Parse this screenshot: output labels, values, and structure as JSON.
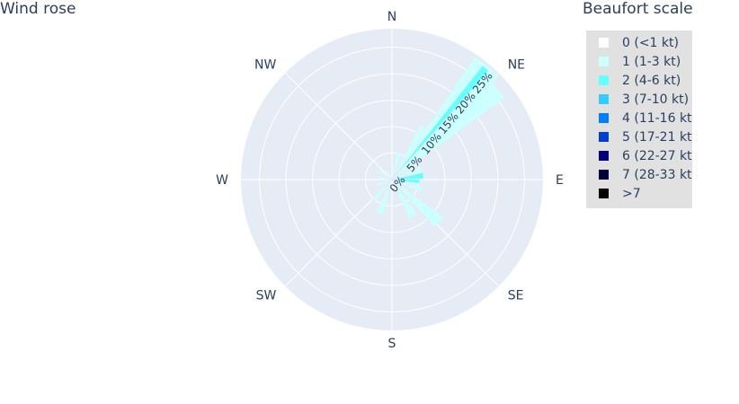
{
  "chart_data": {
    "type": "barpolar",
    "title": "Wind rose",
    "legend_title": "Beaufort scale",
    "legend_position": "right",
    "directions": [
      "N",
      "NE",
      "E",
      "SE",
      "S",
      "SW",
      "W",
      "NW"
    ],
    "radial_ticks": [
      "0%",
      "5%",
      "10%",
      "15%",
      "20%",
      "25%"
    ],
    "radial_range": [
      0,
      28.5
    ],
    "grid": true,
    "series": [
      {
        "name": "0 (<1 kt)",
        "color": "#ffffff",
        "bars": []
      },
      {
        "name": "1 (1-3 kt)",
        "color": "#ccffff",
        "bars": [
          {
            "theta": 15,
            "r": 5.3,
            "width": 10
          },
          {
            "theta": 33,
            "r": 11.5,
            "width": 11
          },
          {
            "theta": 40,
            "r": 28,
            "width": 12
          },
          {
            "theta": 49,
            "r": 26.3,
            "width": 10
          },
          {
            "theta": 70,
            "r": 6,
            "width": 10
          },
          {
            "theta": 88,
            "r": 5.6,
            "width": 10
          },
          {
            "theta": 108,
            "r": 6,
            "width": 10
          },
          {
            "theta": 132,
            "r": 12,
            "width": 12
          },
          {
            "theta": 150,
            "r": 8,
            "width": 12
          },
          {
            "theta": 200,
            "r": 6.8,
            "width": 12
          },
          {
            "theta": 222,
            "r": 5,
            "width": 10
          },
          {
            "theta": 250,
            "r": 3,
            "width": 12
          },
          {
            "theta": 280,
            "r": 2.5,
            "width": 12
          },
          {
            "theta": 305,
            "r": 2.7,
            "width": 12
          },
          {
            "theta": 330,
            "r": 2,
            "width": 12
          }
        ]
      },
      {
        "name": "2 (4-6 kt)",
        "color": "#66ffff",
        "bars": [
          {
            "theta": 40,
            "r": 27.5,
            "width": 3
          },
          {
            "theta": 83,
            "r": 6,
            "width": 11
          },
          {
            "theta": 94,
            "r": 5.2,
            "width": 8
          }
        ]
      },
      {
        "name": "3 (7-10 kt)",
        "color": "#33ccff",
        "bars": []
      },
      {
        "name": "4 (11-16 kt)",
        "color": "#0080ff",
        "bars": []
      },
      {
        "name": "5 (17-21 kt)",
        "color": "#0040cc",
        "bars": []
      },
      {
        "name": "6 (22-27 kt)",
        "color": "#00007f",
        "bars": []
      },
      {
        "name": "7 (28-33 kt)",
        "color": "#00003d",
        "bars": []
      },
      {
        "name": ">7",
        "color": "#000000",
        "bars": []
      }
    ]
  }
}
